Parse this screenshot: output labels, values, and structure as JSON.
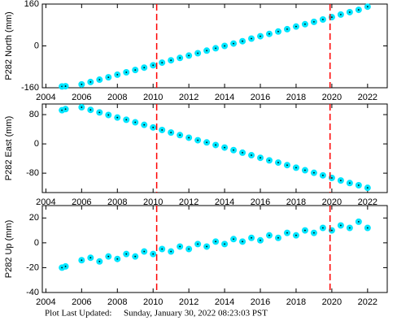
{
  "chart_data": [
    {
      "type": "scatter",
      "ylabel": "P282 North (mm)",
      "color": "#00e5ff",
      "line_color": "#ff0000",
      "x": [
        2004.9,
        2005.1,
        2006,
        2006.5,
        2007,
        2007.5,
        2008,
        2008.5,
        2009,
        2009.5,
        2010,
        2010.5,
        2011,
        2011.5,
        2012,
        2012.5,
        2013,
        2013.5,
        2014,
        2014.5,
        2015,
        2015.5,
        2016,
        2016.5,
        2017,
        2017.5,
        2018,
        2018.5,
        2019,
        2019.5,
        2020,
        2020.5,
        2021,
        2021.5,
        2022
      ],
      "values": [
        -155,
        -154,
        -147,
        -138,
        -129,
        -120,
        -110,
        -101,
        -92,
        -83,
        -74,
        -64,
        -55,
        -46,
        -37,
        -28,
        -18,
        -9,
        0,
        9,
        18,
        28,
        37,
        46,
        55,
        64,
        74,
        83,
        92,
        101,
        110,
        120,
        129,
        138,
        150
      ],
      "xlim": [
        2003.8,
        2023.1
      ],
      "xticks": [
        2004,
        2006,
        2008,
        2010,
        2012,
        2014,
        2016,
        2018,
        2020,
        2022
      ],
      "ylim": [
        -160,
        160
      ],
      "yticks": [
        -160,
        0,
        160
      ],
      "vlines": [
        2010.2,
        2019.9
      ]
    },
    {
      "type": "scatter",
      "ylabel": "P282 East (mm)",
      "color": "#00e5ff",
      "line_color": "#ff0000",
      "x": [
        2004.9,
        2005.1,
        2006,
        2006.5,
        2007,
        2007.5,
        2008,
        2008.5,
        2009,
        2009.5,
        2010,
        2010.5,
        2011,
        2011.5,
        2012,
        2012.5,
        2013,
        2013.5,
        2014,
        2014.5,
        2015,
        2015.5,
        2016,
        2016.5,
        2017,
        2017.5,
        2018,
        2018.5,
        2019,
        2019.5,
        2020,
        2020.5,
        2021,
        2021.5,
        2022
      ],
      "values": [
        92,
        95,
        100,
        93,
        86,
        79,
        72,
        66,
        59,
        52,
        45,
        38,
        31,
        24,
        17,
        10,
        4,
        -3,
        -10,
        -17,
        -24,
        -31,
        -38,
        -45,
        -51,
        -58,
        -65,
        -72,
        -79,
        -86,
        -93,
        -100,
        -107,
        -113,
        -120
      ],
      "xlim": [
        2003.8,
        2023.1
      ],
      "xticks": [
        2004,
        2006,
        2008,
        2010,
        2012,
        2014,
        2016,
        2018,
        2020,
        2022
      ],
      "ylim": [
        -133,
        109
      ],
      "yticks": [
        -80,
        0,
        80
      ],
      "vlines": [
        2010.2,
        2019.9
      ]
    },
    {
      "type": "scatter",
      "ylabel": "P282 Up (mm)",
      "color": "#00e5ff",
      "line_color": "#ff0000",
      "x": [
        2004.9,
        2005.1,
        2006,
        2006.5,
        2007,
        2007.5,
        2008,
        2008.5,
        2009,
        2009.5,
        2010,
        2010.5,
        2011,
        2011.5,
        2012,
        2012.5,
        2013,
        2013.5,
        2014,
        2014.5,
        2015,
        2015.5,
        2016,
        2016.5,
        2017,
        2017.5,
        2018,
        2018.5,
        2019,
        2019.5,
        2020,
        2020.5,
        2021,
        2021.5,
        2022
      ],
      "values": [
        -20,
        -19,
        -14,
        -12,
        -15,
        -11,
        -13,
        -9,
        -11,
        -7,
        -9,
        -5,
        -7,
        -3,
        -5,
        -1,
        -3,
        1,
        -1,
        3,
        1,
        4,
        2,
        6,
        4,
        8,
        6,
        10,
        8,
        12,
        10,
        14,
        12,
        17,
        12
      ],
      "xlim": [
        2003.8,
        2023.1
      ],
      "xticks": [
        2004,
        2006,
        2008,
        2010,
        2012,
        2014,
        2016,
        2018,
        2020,
        2022
      ],
      "ylim": [
        -40,
        30
      ],
      "yticks": [
        -40,
        -20,
        0,
        20
      ],
      "vlines": [
        2010.2,
        2019.9
      ]
    }
  ],
  "footer": {
    "label": "Plot Last Updated:",
    "timestamp": "Sunday, January 30, 2022 08:23:03 PST"
  }
}
